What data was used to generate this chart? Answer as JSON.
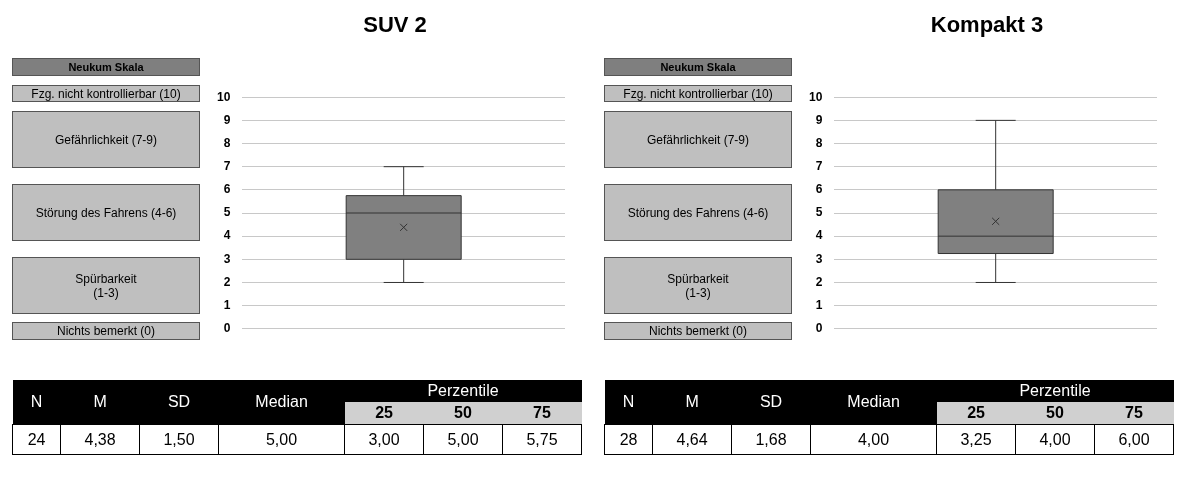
{
  "chart_data": [
    {
      "type": "box",
      "title": "SUV 2",
      "categories": [
        null
      ],
      "color": "#808080",
      "boxes": [
        {
          "low": 2,
          "q1": 3,
          "median": 5,
          "q3": 5.75,
          "high": 7,
          "mean": 4.38
        }
      ],
      "ylim": [
        0,
        10
      ],
      "yticks": [
        0,
        1,
        2,
        3,
        4,
        5,
        6,
        7,
        8,
        9,
        10
      ],
      "grid": "y",
      "marker": "cross",
      "annotations": [
        "Neukum Skala",
        "Fzg. nicht kontrollierbar (10)",
        "Gefährlichkeit (7-9)",
        "Störung des Fahrens (4-6)",
        "Spürbarkeit\n(1-3)",
        "Nichts bemerkt (0)",
        "N",
        "M",
        "SD",
        "Median",
        "Perzentile",
        "25",
        "50",
        "75",
        "24",
        "4,38",
        "1,50",
        "5,00",
        "3,00",
        "5,00",
        "5,75"
      ]
    },
    {
      "type": "box",
      "title": "Kompakt 3",
      "categories": [
        null
      ],
      "color": "#808080",
      "boxes": [
        {
          "low": 2,
          "q1": 3.25,
          "median": 4,
          "q3": 6,
          "high": 9,
          "mean": 4.64
        }
      ],
      "ylim": [
        0,
        10
      ],
      "yticks": [
        0,
        1,
        2,
        3,
        4,
        5,
        6,
        7,
        8,
        9,
        10
      ],
      "grid": "y",
      "marker": "cross",
      "annotations": [
        "Neukum Skala",
        "Fzg. nicht kontrollierbar (10)",
        "Gefährlichkeit (7-9)",
        "Störung des Fahrens (4-6)",
        "Spürbarkeit\n(1-3)",
        "Nichts bemerkt (0)",
        "N",
        "M",
        "SD",
        "Median",
        "Perzentile",
        "25",
        "50",
        "75",
        "28",
        "4,64",
        "1,68",
        "4,00",
        "3,25",
        "4,00",
        "6,00"
      ]
    }
  ]
}
